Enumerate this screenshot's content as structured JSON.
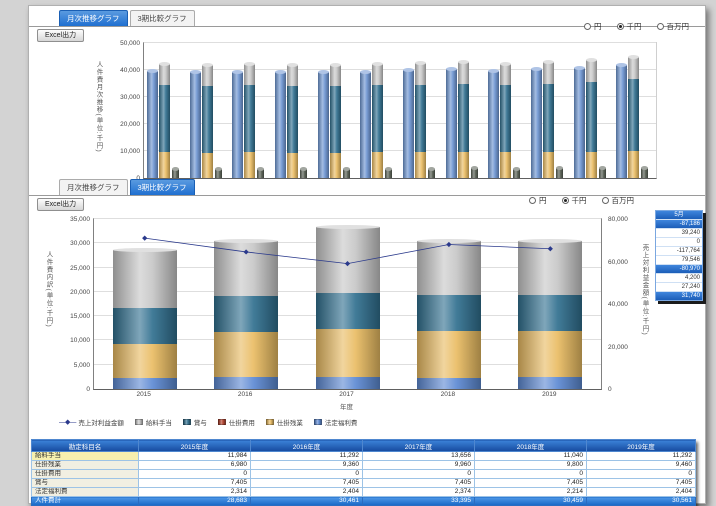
{
  "section1": {
    "tabs": [
      "月次推移グラフ",
      "3期比較グラフ"
    ],
    "excel_button": "Excel出力",
    "unit_options": [
      {
        "label": "円",
        "selected": false
      },
      {
        "label": "千円",
        "selected": true
      },
      {
        "label": "百万円",
        "selected": false
      }
    ]
  },
  "section2": {
    "tabs": [
      "月次推移グラフ",
      "3期比較グラフ"
    ],
    "excel_button": "Excel出力",
    "unit_options": [
      {
        "label": "円",
        "selected": false
      },
      {
        "label": "千円",
        "selected": true
      },
      {
        "label": "百万円",
        "selected": false
      }
    ]
  },
  "colors": {
    "accent_blue": "#1f6fd0",
    "bar_blue": "#6d94d1",
    "bar_yellow": "#e9bc63",
    "bar_teal": "#31708f",
    "bar_gray": "#c6c6c6",
    "bar_dark": "#565e52",
    "bar_red": "#b5442f",
    "line_navy": "#2b3a8c"
  },
  "chart_data": [
    {
      "type": "bar",
      "ylabel": "人件費月次推移(単位:千円)",
      "ylim": [
        0,
        50000
      ],
      "ytick_step": 10000,
      "yticks": [
        "50,000",
        "40,000",
        "30,000",
        "20,000",
        "10,000",
        "0"
      ],
      "grid": true,
      "series": [
        {
          "name": "blue-bar",
          "color": "#6d94d1",
          "values": [
            39500,
            39200,
            39400,
            39100,
            39300,
            39400,
            40000,
            40200,
            39800,
            40300,
            40800,
            41800
          ]
        },
        {
          "name": "stack-yellow",
          "color": "#e9bc63",
          "values": [
            9500,
            9400,
            9500,
            9300,
            9400,
            9500,
            9600,
            9600,
            9500,
            9600,
            9700,
            9900
          ]
        },
        {
          "name": "stack-teal",
          "color": "#31708f",
          "values": [
            24800,
            24700,
            24800,
            24700,
            24700,
            24800,
            25000,
            25200,
            24900,
            25300,
            25800,
            26600
          ]
        },
        {
          "name": "stack-gray",
          "color": "#c6c6c6",
          "values": [
            7900,
            7900,
            7900,
            7900,
            7900,
            7900,
            8000,
            8100,
            8000,
            8100,
            8100,
            8300
          ]
        },
        {
          "name": "dark-bar",
          "color": "#565e52",
          "values": [
            3500,
            3400,
            3500,
            3300,
            3400,
            3500,
            3500,
            3600,
            3500,
            3600,
            3600,
            3700
          ]
        }
      ]
    },
    {
      "type": "bar",
      "title": "",
      "xlabel": "年度",
      "ylabel": "人件費内訳(単位:千円)",
      "ylabel_right": "売上対利益金額(単位:千円)",
      "ylim": [
        0,
        35000
      ],
      "yticks": [
        "35,000",
        "30,000",
        "25,000",
        "20,000",
        "15,000",
        "10,000",
        "5,000",
        "0"
      ],
      "ylim_right": [
        0,
        80000
      ],
      "yticks_right": [
        "80,000",
        "60,000",
        "40,000",
        "20,000",
        "0"
      ],
      "grid": true,
      "categories": [
        "2015",
        "2016",
        "2017",
        "2018",
        "2019"
      ],
      "series": [
        {
          "name": "法定福利費",
          "color": "#5d8ad3",
          "values": [
            2314,
            2404,
            2374,
            2214,
            2404
          ]
        },
        {
          "name": "仕掛残業",
          "color": "#e9bc63",
          "values": [
            6980,
            9360,
            9960,
            9800,
            9460
          ]
        },
        {
          "name": "賞与",
          "color": "#31708f",
          "values": [
            7405,
            7405,
            7405,
            7405,
            7405
          ]
        },
        {
          "name": "仕掛費用",
          "color": "#b5442f",
          "values": [
            0,
            0,
            0,
            0,
            0
          ]
        },
        {
          "name": "給料手当",
          "color": "#c6c6c6",
          "values": [
            11984,
            11292,
            13656,
            11040,
            11292
          ]
        }
      ],
      "line": {
        "name": "売上対利益金額",
        "color": "#2b3a8c",
        "axis": "right",
        "values": [
          71000,
          64500,
          59000,
          68000,
          66000
        ]
      },
      "legend": [
        {
          "marker": "line",
          "label": "売上対利益金額",
          "color": "#2b3a8c"
        },
        {
          "marker": "box",
          "label": "給料手当",
          "color": "#c6c6c6"
        },
        {
          "marker": "box",
          "label": "賞与",
          "color": "#31708f"
        },
        {
          "marker": "box",
          "label": "仕掛費用",
          "color": "#b5442f"
        },
        {
          "marker": "box",
          "label": "仕掛残業",
          "color": "#e9bc63"
        },
        {
          "marker": "box",
          "label": "法定福利費",
          "color": "#5d8ad3"
        }
      ]
    }
  ],
  "side_panel": {
    "header": "5月",
    "rows": [
      {
        "value": "-87,186",
        "highlight": true
      },
      {
        "value": "39,240",
        "highlight": false
      },
      {
        "value": "0",
        "highlight": false
      },
      {
        "value": "-117,764",
        "highlight": false
      },
      {
        "value": "79,546",
        "highlight": false
      },
      {
        "value": "-80,970",
        "highlight": true
      },
      {
        "value": "4,200",
        "highlight": false
      },
      {
        "value": "27,240",
        "highlight": false
      },
      {
        "value": "31,740",
        "highlight": true
      }
    ]
  },
  "table": {
    "columns": [
      "勘定科目名",
      "2015年度",
      "2016年度",
      "2017年度",
      "2018年度",
      "2019年度"
    ],
    "rows": [
      {
        "label": "給料手当",
        "highlight": true,
        "values": [
          "11,984",
          "11,292",
          "13,656",
          "11,040",
          "11,292"
        ]
      },
      {
        "label": "仕掛残業",
        "highlight": false,
        "values": [
          "6,980",
          "9,360",
          "9,960",
          "9,800",
          "9,460"
        ]
      },
      {
        "label": "仕掛費用",
        "highlight": false,
        "values": [
          "0",
          "0",
          "0",
          "0",
          "0"
        ]
      },
      {
        "label": "賞与",
        "highlight": false,
        "values": [
          "7,405",
          "7,405",
          "7,405",
          "7,405",
          "7,405"
        ]
      },
      {
        "label": "法定福利費",
        "highlight": false,
        "values": [
          "2,314",
          "2,404",
          "2,374",
          "2,214",
          "2,404"
        ]
      }
    ],
    "total": {
      "label": "人件費計",
      "values": [
        "28,683",
        "30,461",
        "33,395",
        "30,459",
        "30,561"
      ]
    }
  }
}
